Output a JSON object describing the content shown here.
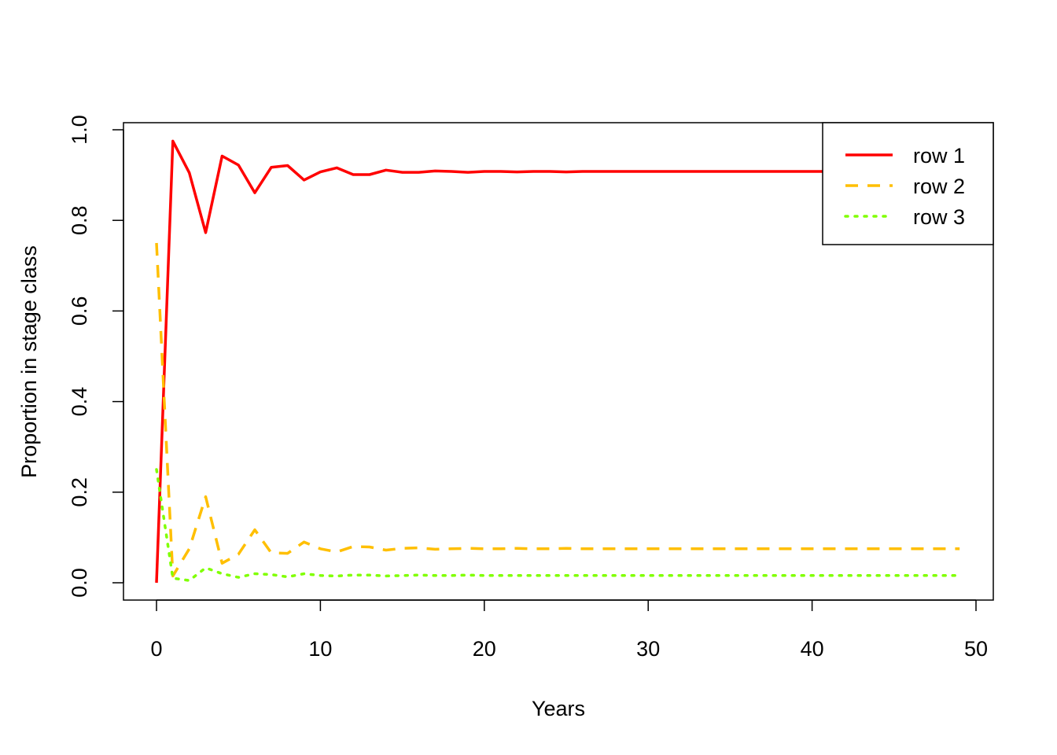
{
  "chart_data": {
    "type": "line",
    "title": "",
    "xlabel": "Years",
    "ylabel": "Proportion in stage class",
    "xlim": [
      0,
      50
    ],
    "ylim": [
      0,
      1
    ],
    "x_ticks": [
      "0",
      "10",
      "20",
      "30",
      "40",
      "50"
    ],
    "y_ticks": [
      "0.0",
      "0.2",
      "0.4",
      "0.6",
      "0.8",
      "1.0"
    ],
    "grid": false,
    "legend_position": "top-right",
    "series": [
      {
        "name": "row 1",
        "color": "#ff0000",
        "line_style": "solid",
        "x": [
          0,
          1,
          2,
          3,
          4,
          5,
          6,
          7,
          8,
          9,
          10,
          11,
          12,
          13,
          14,
          15,
          16,
          17,
          18,
          19,
          20,
          21,
          22,
          23,
          24,
          25,
          26,
          27,
          28,
          29,
          30,
          31,
          32,
          33,
          34,
          35,
          36,
          37,
          38,
          39,
          40,
          41,
          42,
          43,
          44,
          45,
          46,
          47,
          48,
          49
        ],
        "values": [
          0.0,
          0.975,
          0.905,
          0.773,
          0.942,
          0.922,
          0.861,
          0.917,
          0.921,
          0.889,
          0.907,
          0.916,
          0.901,
          0.901,
          0.911,
          0.906,
          0.906,
          0.909,
          0.908,
          0.906,
          0.908,
          0.908,
          0.907,
          0.908,
          0.908,
          0.907,
          0.908,
          0.908,
          0.908,
          0.908,
          0.908,
          0.908,
          0.908,
          0.908,
          0.908,
          0.908,
          0.908,
          0.908,
          0.908,
          0.908,
          0.908,
          0.908,
          0.908,
          0.908,
          0.908,
          0.908,
          0.908,
          0.908,
          0.908,
          0.908
        ]
      },
      {
        "name": "row 2",
        "color": "#ffbf00",
        "line_style": "dashed",
        "x": [
          0,
          1,
          2,
          3,
          4,
          5,
          6,
          7,
          8,
          9,
          10,
          11,
          12,
          13,
          14,
          15,
          16,
          17,
          18,
          19,
          20,
          21,
          22,
          23,
          24,
          25,
          26,
          27,
          28,
          29,
          30,
          31,
          32,
          33,
          34,
          35,
          36,
          37,
          38,
          39,
          40,
          41,
          42,
          43,
          44,
          45,
          46,
          47,
          48,
          49
        ],
        "values": [
          0.75,
          0.015,
          0.075,
          0.19,
          0.043,
          0.063,
          0.117,
          0.066,
          0.065,
          0.09,
          0.075,
          0.068,
          0.08,
          0.079,
          0.072,
          0.076,
          0.077,
          0.074,
          0.075,
          0.076,
          0.075,
          0.075,
          0.076,
          0.075,
          0.075,
          0.076,
          0.075,
          0.075,
          0.075,
          0.075,
          0.075,
          0.075,
          0.075,
          0.075,
          0.075,
          0.075,
          0.075,
          0.075,
          0.075,
          0.075,
          0.075,
          0.075,
          0.075,
          0.075,
          0.075,
          0.075,
          0.075,
          0.075,
          0.075,
          0.075
        ]
      },
      {
        "name": "row 3",
        "color": "#80ff00",
        "line_style": "dotted",
        "x": [
          0,
          1,
          2,
          3,
          4,
          5,
          6,
          7,
          8,
          9,
          10,
          11,
          12,
          13,
          14,
          15,
          16,
          17,
          18,
          19,
          20,
          21,
          22,
          23,
          24,
          25,
          26,
          27,
          28,
          29,
          30,
          31,
          32,
          33,
          34,
          35,
          36,
          37,
          38,
          39,
          40,
          41,
          42,
          43,
          44,
          45,
          46,
          47,
          48,
          49
        ],
        "values": [
          0.25,
          0.01,
          0.005,
          0.033,
          0.02,
          0.012,
          0.02,
          0.018,
          0.013,
          0.02,
          0.016,
          0.015,
          0.017,
          0.017,
          0.015,
          0.016,
          0.017,
          0.016,
          0.016,
          0.017,
          0.016,
          0.016,
          0.016,
          0.016,
          0.016,
          0.016,
          0.016,
          0.016,
          0.016,
          0.016,
          0.016,
          0.016,
          0.016,
          0.016,
          0.016,
          0.016,
          0.016,
          0.016,
          0.016,
          0.016,
          0.016,
          0.016,
          0.016,
          0.016,
          0.016,
          0.016,
          0.016,
          0.016,
          0.016,
          0.016
        ]
      }
    ]
  }
}
